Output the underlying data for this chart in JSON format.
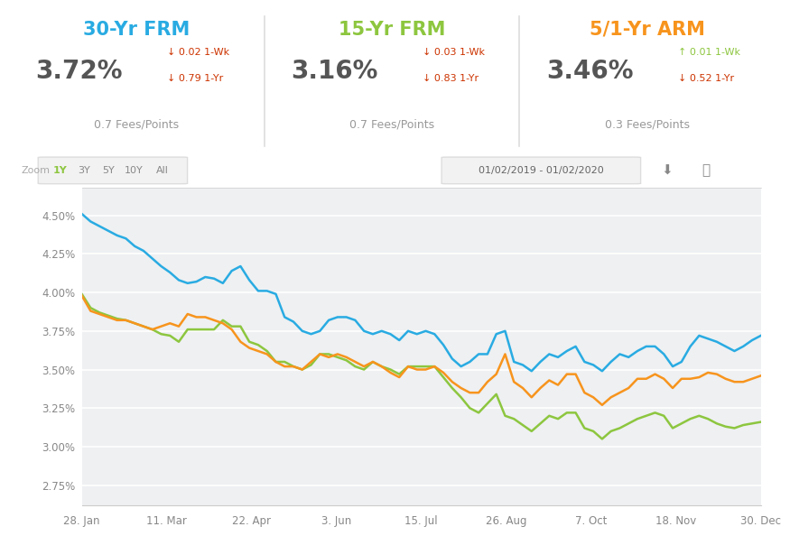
{
  "bg_color": "#ffffff",
  "chart_bg": "#eef0f2",
  "title_30yr": "30-Yr FRM",
  "title_15yr": "15-Yr FRM",
  "title_arm": "5/1-Yr ARM",
  "color_30yr": "#29abe2",
  "color_15yr": "#8dc63f",
  "color_arm": "#f7941d",
  "rate_30yr": "3.72%",
  "rate_15yr": "3.16%",
  "rate_arm": "3.46%",
  "wk_chg_30yr": "↓ 0.02 1-Wk",
  "yr_chg_30yr": "↓ 0.79 1-Yr",
  "wk_chg_15yr": "↓ 0.03 1-Wk",
  "yr_chg_15yr": "↓ 0.83 1-Yr",
  "wk_chg_arm": "↑ 0.01 1-Wk",
  "yr_chg_arm": "↓ 0.52 1-Yr",
  "wk_chg_30yr_color": "#cc3300",
  "yr_chg_30yr_color": "#cc3300",
  "wk_chg_15yr_color": "#cc3300",
  "yr_chg_15yr_color": "#cc3300",
  "wk_chg_arm_color": "#8dc63f",
  "yr_chg_arm_color": "#cc3300",
  "fees_30yr": "0.7 Fees/Points",
  "fees_15yr": "0.7 Fees/Points",
  "fees_arm": "0.3 Fees/Points",
  "zoom_label": "Zoom",
  "zoom_options": [
    "1Y",
    "3Y",
    "5Y",
    "10Y",
    "All"
  ],
  "zoom_active": "1Y",
  "date_range": "01/02/2019 - 01/02/2020",
  "x_labels": [
    "28. Jan",
    "11. Mar",
    "22. Apr",
    "3. Jun",
    "15. Jul",
    "26. Aug",
    "7. Oct",
    "18. Nov",
    "30. Dec"
  ],
  "y_ticks": [
    2.75,
    3.0,
    3.25,
    3.5,
    3.75,
    4.0,
    4.25,
    4.5
  ],
  "ylim": [
    2.62,
    4.68
  ],
  "line_30yr": [
    4.51,
    4.46,
    4.43,
    4.4,
    4.37,
    4.35,
    4.3,
    4.27,
    4.22,
    4.17,
    4.13,
    4.08,
    4.06,
    4.07,
    4.1,
    4.09,
    4.06,
    4.14,
    4.17,
    4.08,
    4.01,
    4.01,
    3.99,
    3.84,
    3.81,
    3.75,
    3.73,
    3.75,
    3.82,
    3.84,
    3.84,
    3.82,
    3.75,
    3.73,
    3.75,
    3.73,
    3.69,
    3.75,
    3.73,
    3.75,
    3.73,
    3.66,
    3.57,
    3.52,
    3.55,
    3.6,
    3.6,
    3.73,
    3.75,
    3.55,
    3.53,
    3.49,
    3.55,
    3.6,
    3.58,
    3.62,
    3.65,
    3.55,
    3.53,
    3.49,
    3.55,
    3.6,
    3.58,
    3.62,
    3.65,
    3.65,
    3.6,
    3.52,
    3.55,
    3.65,
    3.72,
    3.7,
    3.68,
    3.65,
    3.62,
    3.65,
    3.69,
    3.72
  ],
  "line_arm": [
    3.98,
    3.88,
    3.86,
    3.84,
    3.82,
    3.82,
    3.8,
    3.78,
    3.76,
    3.78,
    3.8,
    3.78,
    3.86,
    3.84,
    3.84,
    3.82,
    3.8,
    3.76,
    3.68,
    3.64,
    3.62,
    3.6,
    3.55,
    3.52,
    3.52,
    3.5,
    3.55,
    3.6,
    3.58,
    3.6,
    3.58,
    3.55,
    3.52,
    3.55,
    3.52,
    3.48,
    3.45,
    3.52,
    3.5,
    3.5,
    3.52,
    3.48,
    3.42,
    3.38,
    3.35,
    3.35,
    3.42,
    3.47,
    3.6,
    3.42,
    3.38,
    3.32,
    3.38,
    3.43,
    3.4,
    3.47,
    3.47,
    3.35,
    3.32,
    3.27,
    3.32,
    3.35,
    3.38,
    3.44,
    3.44,
    3.47,
    3.44,
    3.38,
    3.44,
    3.44,
    3.45,
    3.48,
    3.47,
    3.44,
    3.42,
    3.42,
    3.44,
    3.46
  ],
  "line_15yr": [
    3.99,
    3.9,
    3.87,
    3.85,
    3.83,
    3.82,
    3.8,
    3.78,
    3.76,
    3.73,
    3.72,
    3.68,
    3.76,
    3.76,
    3.76,
    3.76,
    3.82,
    3.78,
    3.78,
    3.68,
    3.66,
    3.62,
    3.55,
    3.55,
    3.52,
    3.5,
    3.53,
    3.6,
    3.6,
    3.58,
    3.56,
    3.52,
    3.5,
    3.55,
    3.52,
    3.5,
    3.47,
    3.52,
    3.52,
    3.52,
    3.52,
    3.45,
    3.38,
    3.32,
    3.25,
    3.22,
    3.28,
    3.34,
    3.2,
    3.18,
    3.14,
    3.1,
    3.15,
    3.2,
    3.18,
    3.22,
    3.22,
    3.12,
    3.1,
    3.05,
    3.1,
    3.12,
    3.15,
    3.18,
    3.2,
    3.22,
    3.2,
    3.12,
    3.15,
    3.18,
    3.2,
    3.18,
    3.15,
    3.13,
    3.12,
    3.14,
    3.15,
    3.16
  ]
}
